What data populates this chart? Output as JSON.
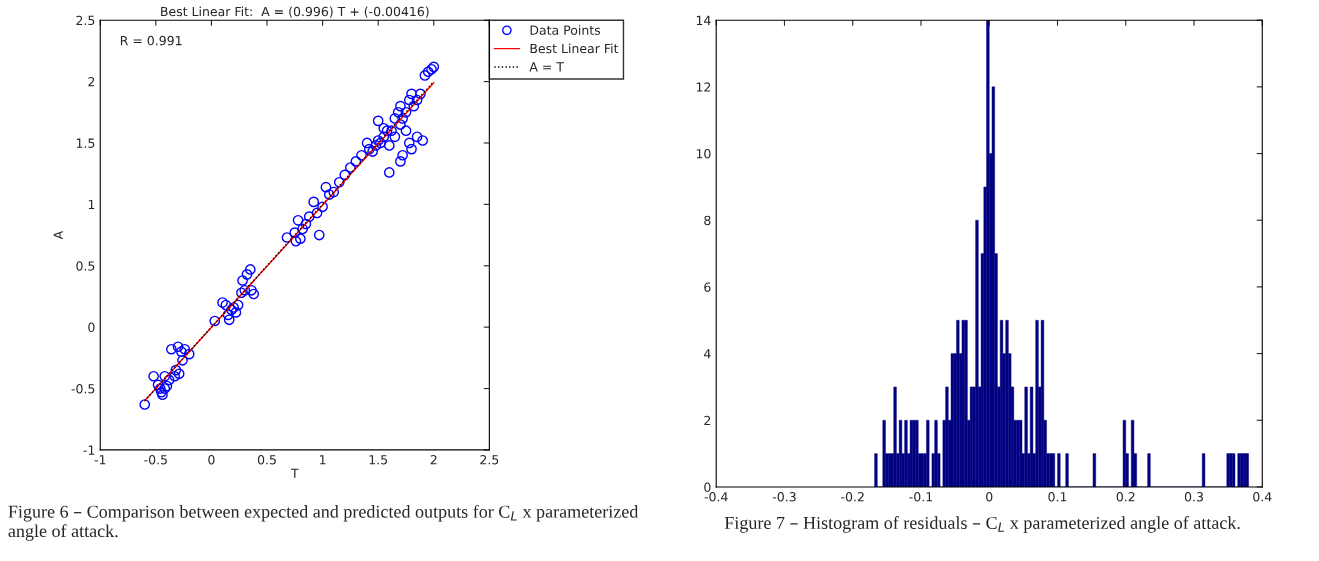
{
  "chart_data": [
    {
      "type": "scatter",
      "title": "Best Linear Fit:  A = (0.996) T + (-0.00416)",
      "xlabel": "T",
      "ylabel": "A",
      "xlim": [
        -1,
        2.5
      ],
      "ylim": [
        -1,
        2.5
      ],
      "xticks": [
        -1,
        -0.5,
        0,
        0.5,
        1,
        1.5,
        2,
        2.5
      ],
      "yticks": [
        -1,
        -0.5,
        0,
        0.5,
        1,
        1.5,
        2,
        2.5
      ],
      "legend": "top right",
      "grid": false,
      "annotations": [
        "R = 0.991",
        "Figure 6 – Comparison between expected and predicted outputs for C$_{L}$ x parameterized angle of attack."
      ],
      "series": [
        {
          "name": "Data Points",
          "type": "scatter",
          "marker": "circle",
          "color": "#0000ff",
          "x": [
            -0.6,
            -0.52,
            -0.48,
            -0.46,
            -0.45,
            -0.44,
            -0.42,
            -0.4,
            -0.42,
            -0.38,
            -0.36,
            -0.33,
            -0.32,
            -0.29,
            -0.3,
            -0.27,
            -0.26,
            -0.24,
            -0.2,
            0.03,
            0.1,
            0.13,
            0.15,
            0.16,
            0.18,
            0.2,
            0.22,
            0.24,
            0.27,
            0.28,
            0.3,
            0.32,
            0.35,
            0.36,
            0.38,
            0.68,
            0.75,
            0.76,
            0.78,
            0.8,
            0.82,
            0.85,
            0.88,
            0.92,
            0.95,
            0.97,
            1.0,
            1.03,
            1.06,
            1.1,
            1.15,
            1.2,
            1.25,
            1.3,
            1.35,
            1.4,
            1.42,
            1.45,
            1.48,
            1.5,
            1.52,
            1.55,
            1.58,
            1.6,
            1.6,
            1.62,
            1.65,
            1.65,
            1.68,
            1.7,
            1.7,
            1.72,
            1.72,
            1.75,
            1.75,
            1.78,
            1.78,
            1.8,
            1.8,
            1.82,
            1.85,
            1.85,
            1.88,
            1.9,
            1.92,
            1.95,
            1.98,
            2.0,
            1.5,
            1.55,
            1.7
          ],
          "values": [
            -0.63,
            -0.4,
            -0.47,
            -0.5,
            -0.53,
            -0.55,
            -0.5,
            -0.48,
            -0.4,
            -0.43,
            -0.18,
            -0.4,
            -0.35,
            -0.38,
            -0.16,
            -0.2,
            -0.27,
            -0.18,
            -0.22,
            0.05,
            0.2,
            0.18,
            0.1,
            0.06,
            0.14,
            0.16,
            0.12,
            0.18,
            0.28,
            0.38,
            0.3,
            0.43,
            0.47,
            0.3,
            0.27,
            0.73,
            0.77,
            0.7,
            0.87,
            0.72,
            0.8,
            0.84,
            0.9,
            1.02,
            0.93,
            0.75,
            0.98,
            1.14,
            1.08,
            1.1,
            1.18,
            1.24,
            1.3,
            1.35,
            1.4,
            1.5,
            1.45,
            1.43,
            1.48,
            1.52,
            1.5,
            1.55,
            1.6,
            1.26,
            1.48,
            1.6,
            1.7,
            1.55,
            1.75,
            1.65,
            1.8,
            1.4,
            1.7,
            1.75,
            1.6,
            1.85,
            1.5,
            1.9,
            1.45,
            1.8,
            1.85,
            1.55,
            1.9,
            1.52,
            2.05,
            2.08,
            2.1,
            2.12,
            1.68,
            1.62,
            1.35
          ]
        },
        {
          "name": "Best Linear Fit",
          "type": "line",
          "line_style": "solid",
          "color": "#ff0000",
          "x": [
            -0.6,
            2.0
          ],
          "values": [
            -0.6,
            1.99
          ]
        },
        {
          "name": "A = T",
          "type": "line",
          "line_style": "dotted",
          "color": "#000000",
          "x": [
            -0.6,
            2.0
          ],
          "values": [
            -0.6,
            2.0
          ]
        }
      ]
    },
    {
      "type": "histogram",
      "color": "#000080",
      "xlim": [
        -0.4,
        0.4
      ],
      "ylim": [
        0,
        14
      ],
      "xticks": [
        -0.4,
        -0.3,
        -0.2,
        -0.1,
        0,
        0.1,
        0.2,
        0.3,
        0.4
      ],
      "yticks": [
        0,
        2,
        4,
        6,
        8,
        10,
        12,
        14
      ],
      "grid": false,
      "annotations": [
        "Figure 7 – Histogram of residuals – C$_{L}$ x parameterized angle of attack."
      ],
      "bins": [
        -0.168,
        -0.164,
        -0.16,
        -0.156,
        -0.152,
        -0.148,
        -0.144,
        -0.14,
        -0.136,
        -0.132,
        -0.128,
        -0.124,
        -0.12,
        -0.116,
        -0.112,
        -0.108,
        -0.104,
        -0.1,
        -0.096,
        -0.092,
        -0.088,
        -0.084,
        -0.08,
        -0.076,
        -0.072,
        -0.068,
        -0.064,
        -0.06,
        -0.056,
        -0.052,
        -0.048,
        -0.044,
        -0.04,
        -0.036,
        -0.032,
        -0.028,
        -0.024,
        -0.02,
        -0.016,
        -0.012,
        -0.008,
        -0.004,
        0,
        0.004,
        0.008,
        0.012,
        0.016,
        0.02,
        0.024,
        0.028,
        0.032,
        0.036,
        0.04,
        0.044,
        0.048,
        0.052,
        0.056,
        0.06,
        0.064,
        0.068,
        0.072,
        0.076,
        0.08,
        0.084,
        0.088,
        0.092,
        0.096,
        0.1,
        0.104,
        0.108,
        0.112,
        0.116,
        0.12,
        0.124,
        0.128,
        0.132,
        0.136,
        0.14,
        0.144,
        0.148,
        0.152,
        0.156,
        0.16,
        0.164,
        0.168,
        0.172,
        0.176,
        0.18,
        0.184,
        0.188,
        0.192,
        0.196,
        0.2,
        0.204,
        0.208,
        0.212,
        0.216,
        0.22,
        0.224,
        0.228,
        0.232,
        0.236,
        0.24,
        0.244,
        0.248,
        0.252,
        0.256,
        0.26,
        0.264,
        0.268,
        0.272,
        0.276,
        0.28,
        0.284,
        0.288,
        0.292,
        0.296,
        0.3,
        0.304,
        0.308,
        0.312,
        0.316,
        0.32,
        0.324,
        0.328,
        0.332,
        0.336,
        0.34,
        0.344,
        0.348,
        0.352,
        0.356,
        0.36,
        0.364,
        0.368,
        0.372,
        0.376,
        0.38
      ],
      "values": [
        1,
        0,
        0,
        2,
        1,
        1,
        1,
        3,
        1,
        2,
        1,
        2,
        1,
        2,
        2,
        2,
        1,
        1,
        1,
        2,
        0,
        1,
        2,
        1,
        0,
        2,
        3,
        2,
        4,
        4,
        5,
        4,
        5,
        5,
        2,
        3,
        3,
        8,
        3,
        7,
        9,
        14,
        10,
        12,
        7,
        3,
        5,
        4,
        5,
        4,
        3,
        2,
        2,
        2,
        1,
        3,
        1,
        3,
        1,
        5,
        3,
        5,
        2,
        1,
        1,
        1,
        0,
        1,
        0,
        0,
        1,
        0,
        0,
        0,
        0,
        0,
        0,
        0,
        0,
        0,
        1,
        0,
        0,
        0,
        0,
        0,
        0,
        0,
        0,
        0,
        0,
        2,
        1,
        0,
        2,
        1,
        0,
        0,
        0,
        0,
        1,
        0,
        0,
        0,
        0,
        0,
        0,
        0,
        0,
        0,
        0,
        0,
        0,
        0,
        0,
        0,
        0,
        0,
        0,
        0,
        1,
        0,
        0,
        0,
        0,
        0,
        0,
        0,
        0,
        1,
        1,
        1,
        0,
        1,
        1,
        1,
        1
      ]
    }
  ]
}
